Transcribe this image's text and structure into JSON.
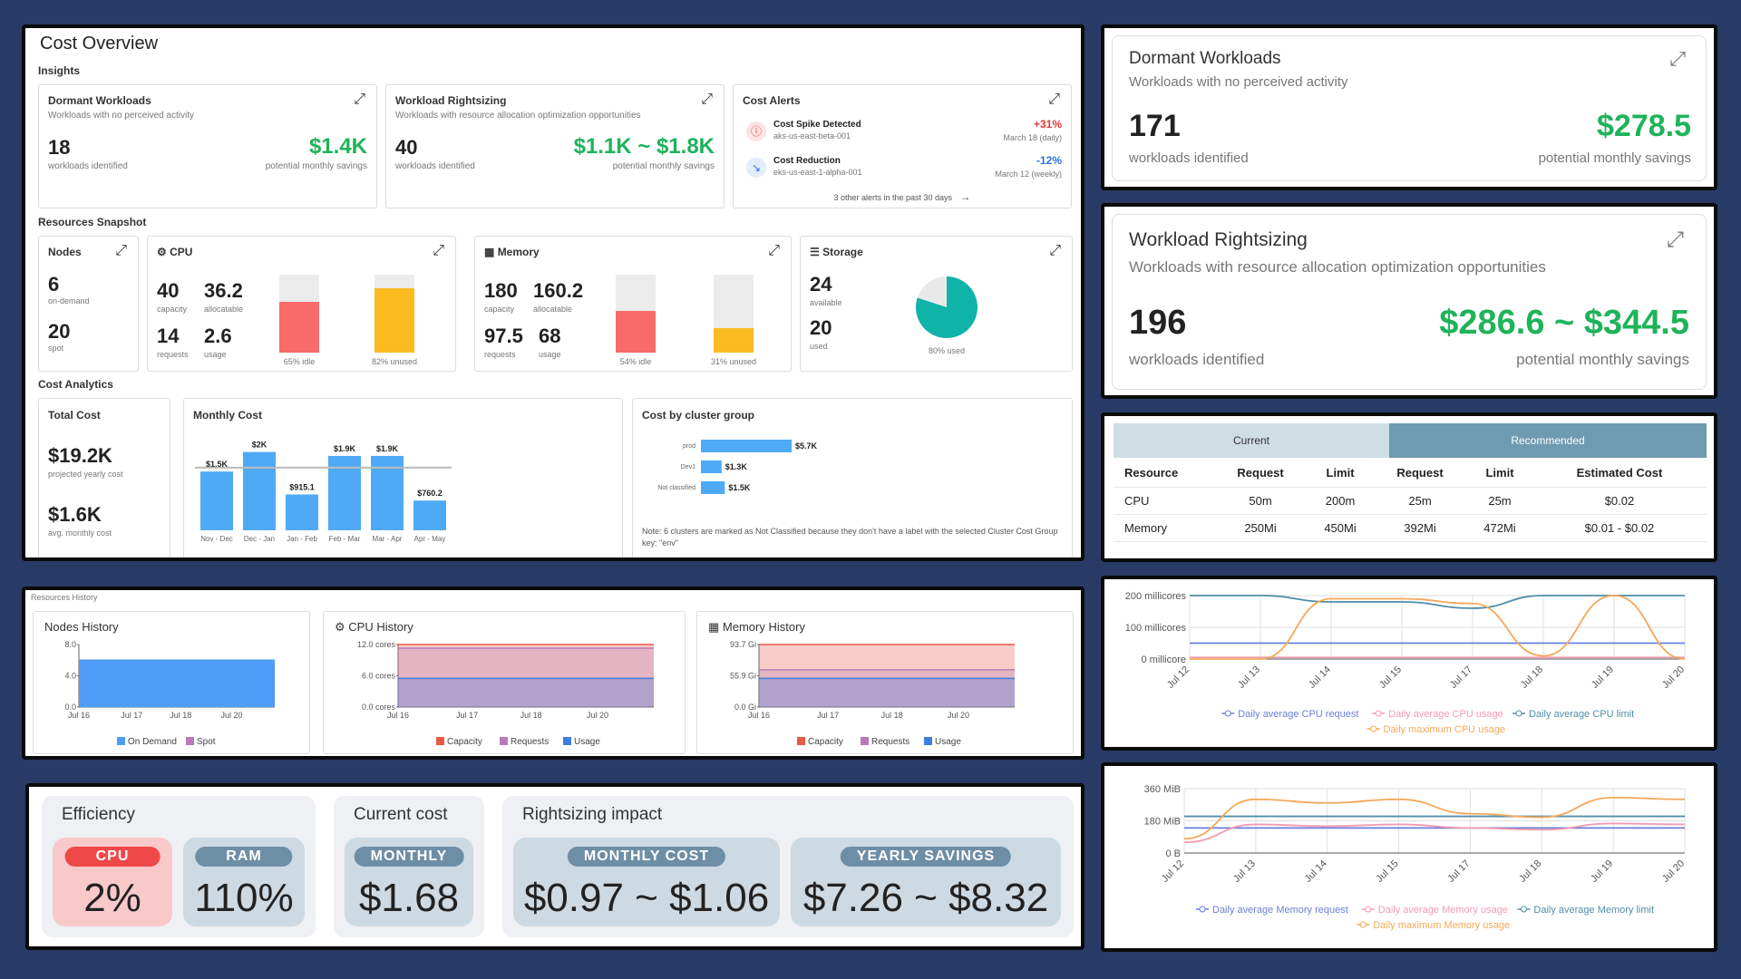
{
  "overview": {
    "title": "Cost Overview",
    "insights_label": "Insights",
    "dormant": {
      "title": "Dormant Workloads",
      "subtitle": "Workloads with no perceived activity",
      "count": "18",
      "count_label": "workloads identified",
      "savings": "$1.4K",
      "savings_label": "potential monthly savings"
    },
    "rightsizing": {
      "title": "Workload Rightsizing",
      "subtitle": "Workloads with resource allocation optimization opportunities",
      "count": "40",
      "count_label": "workloads identified",
      "savings": "$1.1K ~ $1.8K",
      "savings_label": "potential monthly savings"
    },
    "alerts": {
      "title": "Cost Alerts",
      "items": [
        {
          "title": "Cost Spike Detected",
          "cluster": "aks-us-east-beta-001",
          "change": "+31%",
          "date": "March 18 (daily)",
          "color": "#e03a3a"
        },
        {
          "title": "Cost Reduction",
          "cluster": "eks-us-east-1-alpha-001",
          "change": "-12%",
          "date": "March 12 (weekly)",
          "color": "#2f6fd8"
        }
      ],
      "footer": "3 other alerts in the past 30 days"
    },
    "snapshot_label": "Resources Snapshot",
    "nodes": {
      "title": "Nodes",
      "on_demand": "6",
      "on_demand_label": "on-demand",
      "spot": "20",
      "spot_label": "spot"
    },
    "cpu": {
      "title": "CPU",
      "capacity": "40",
      "capacity_label": "capacity",
      "allocatable": "36.2",
      "allocatable_label": "allocatable",
      "requests": "14",
      "requests_label": "requests",
      "usage": "2.6",
      "usage_label": "usage",
      "idle_label": "65% idle",
      "unused_label": "82% unused",
      "idle_fraction": 0.65,
      "unused_fraction": 0.82
    },
    "memory": {
      "title": "Memory",
      "capacity": "180",
      "capacity_label": "capacity",
      "allocatable": "160.2",
      "allocatable_label": "allocatable",
      "requests": "97.5",
      "requests_label": "requests",
      "usage": "68",
      "usage_label": "usage",
      "idle_label": "54% idle",
      "unused_label": "31% unused",
      "idle_fraction": 0.54,
      "unused_fraction": 0.31
    },
    "storage": {
      "title": "Storage",
      "available": "24",
      "available_label": "available",
      "used": "20",
      "used_label": "used",
      "used_pct_label": "80% used",
      "used_fraction": 0.8
    },
    "analytics_label": "Cost Analytics",
    "total_cost": {
      "title": "Total Cost",
      "yearly": "$19.2K",
      "yearly_label": "projected yearly cost",
      "monthly": "$1.6K",
      "monthly_label": "avg. monthly cost"
    },
    "monthly_cost_title": "Monthly Cost",
    "cluster_group_title": "Cost by cluster group",
    "cluster_note": "Note: 6 clusters are marked as Not Classified because they don't have a label with the selected Cluster Cost Group key: \"env\""
  },
  "chart_data": [
    {
      "type": "bar",
      "title": "Monthly Cost",
      "categories": [
        "Nov - Dec",
        "Dec - Jan",
        "Jan - Feb",
        "Feb - Mar",
        "Mar - Apr",
        "Apr - May"
      ],
      "values": [
        1500,
        2000,
        915.1,
        1900,
        1900,
        760.2
      ],
      "labels": [
        "$1.5K",
        "$2K",
        "$915.1",
        "$1.9K",
        "$1.9K",
        "$760.2"
      ],
      "average": 1600,
      "color": "#4eaaf6"
    },
    {
      "type": "bar",
      "title": "Cost by cluster group",
      "orientation": "horizontal",
      "categories": [
        "prod",
        "Dev1",
        "Not classified"
      ],
      "values": [
        5700,
        1300,
        1500
      ],
      "labels": [
        "$5.7K",
        "$1.3K",
        "$1.5K"
      ],
      "color": "#4eaaf6"
    },
    {
      "type": "area",
      "title": "Nodes History",
      "x": [
        "Jul 16",
        "Jul 17",
        "Jul 18",
        "Jul 20"
      ],
      "yticks": [
        "8.0",
        "4.0",
        "0.0"
      ],
      "ylim": [
        0,
        8
      ],
      "series": [
        {
          "name": "On Demand",
          "value": 6,
          "color": "#4e9cf5"
        },
        {
          "name": "Spot",
          "value": 0,
          "color": "#b77bb8"
        }
      ]
    },
    {
      "type": "area",
      "title": "CPU History",
      "x": [
        "Jul 16",
        "Jul 17",
        "Jul 18",
        "Jul 20"
      ],
      "yticks": [
        "12.0 cores",
        "6.0 cores",
        "0.0 cores"
      ],
      "ylim": [
        0,
        12
      ],
      "series": [
        {
          "name": "Capacity",
          "value": 12,
          "color": "#e85a45"
        },
        {
          "name": "Requests",
          "value": 11.3,
          "color": "#b77bb8"
        },
        {
          "name": "Usage",
          "value": 5.5,
          "color": "#3d7fe0"
        }
      ]
    },
    {
      "type": "area",
      "title": "Memory History",
      "x": [
        "Jul 16",
        "Jul 17",
        "Jul 18",
        "Jul 20"
      ],
      "yticks": [
        "93.7 Gi",
        "55.9 Gi",
        "0.0 Gi"
      ],
      "ylim": [
        0,
        93.7
      ],
      "series": [
        {
          "name": "Capacity",
          "value": 93.7,
          "color": "#e85a45"
        },
        {
          "name": "Requests",
          "value": 55.9,
          "color": "#b77bb8"
        },
        {
          "name": "Usage",
          "value": 43,
          "color": "#3d7fe0"
        }
      ]
    },
    {
      "type": "line",
      "title": "CPU",
      "x": [
        "Jul 12",
        "Jul 13",
        "Jul 14",
        "Jul 15",
        "Jul 17",
        "Jul 18",
        "Jul 19",
        "Jul 20"
      ],
      "yticks": [
        "200 millicores",
        "100 millicores",
        "0 millicore"
      ],
      "ylim": [
        0,
        200
      ],
      "series": [
        {
          "name": "Daily average CPU request",
          "color": "#6a7fd8",
          "values": [
            50,
            50,
            50,
            50,
            50,
            50,
            50,
            50
          ]
        },
        {
          "name": "Daily average CPU usage",
          "color": "#f29bb0",
          "values": [
            5,
            5,
            5,
            5,
            5,
            5,
            5,
            5
          ]
        },
        {
          "name": "Daily average CPU limit",
          "color": "#4f8fa6",
          "values": [
            200,
            200,
            180,
            180,
            160,
            200,
            200,
            200
          ]
        },
        {
          "name": "Daily maximum CPU usage",
          "color": "#f5a85a",
          "values": [
            0,
            0,
            190,
            190,
            175,
            10,
            200,
            0
          ]
        }
      ]
    },
    {
      "type": "line",
      "title": "Memory",
      "x": [
        "Jul 12",
        "Jul 13",
        "Jul 14",
        "Jul 15",
        "Jul 17",
        "Jul 18",
        "Jul 19",
        "Jul 20"
      ],
      "yticks": [
        "360 MiB",
        "180 MiB",
        "0 B"
      ],
      "ylim": [
        0,
        360
      ],
      "series": [
        {
          "name": "Daily average Memory request",
          "color": "#6a7fd8",
          "values": [
            140,
            140,
            140,
            140,
            140,
            140,
            140,
            140
          ]
        },
        {
          "name": "Daily average Memory usage",
          "color": "#f29bb0",
          "values": [
            60,
            160,
            150,
            160,
            140,
            130,
            165,
            160
          ]
        },
        {
          "name": "Daily average Memory limit",
          "color": "#4f8fa6",
          "values": [
            205,
            205,
            205,
            205,
            205,
            205,
            205,
            205
          ]
        },
        {
          "name": "Daily maximum Memory usage",
          "color": "#f5a85a",
          "values": [
            80,
            300,
            280,
            300,
            220,
            200,
            310,
            300
          ]
        }
      ]
    }
  ],
  "right_dormant": {
    "title": "Dormant Workloads",
    "subtitle": "Workloads with no perceived activity",
    "count": "171",
    "count_label": "workloads identified",
    "savings": "$278.5",
    "savings_label": "potential monthly savings"
  },
  "right_rightsizing": {
    "title": "Workload Rightsizing",
    "subtitle": "Workloads with resource allocation optimization opportunities",
    "count": "196",
    "count_label": "workloads identified",
    "savings": "$286.6 ~ $344.5",
    "savings_label": "potential monthly savings"
  },
  "reco_table": {
    "current_tab": "Current",
    "recommended_tab": "Recommended",
    "headers": [
      "Resource",
      "Request",
      "Limit",
      "Request",
      "Limit",
      "Estimated Cost"
    ],
    "rows": [
      [
        "CPU",
        "50m",
        "200m",
        "25m",
        "25m",
        "$0.02"
      ],
      [
        "Memory",
        "250Mi",
        "450Mi",
        "392Mi",
        "472Mi",
        "$0.01 - $0.02"
      ]
    ]
  },
  "history": {
    "label": "Resources History",
    "nodes_title": "Nodes History",
    "cpu_title": "CPU History",
    "memory_title": "Memory History"
  },
  "summary": {
    "efficiency_title": "Efficiency",
    "cpu_tag": "CPU",
    "cpu_value": "2%",
    "ram_tag": "RAM",
    "ram_value": "110%",
    "current_cost_title": "Current cost",
    "monthly_tag": "MONTHLY",
    "monthly_value": "$1.68",
    "rightsizing_title": "Rightsizing impact",
    "monthly_cost_tag": "MONTHLY COST",
    "monthly_cost_value": "$0.97 ~ $1.06",
    "yearly_tag": "YEARLY SAVINGS",
    "yearly_value": "$7.26 ~ $8.32"
  }
}
